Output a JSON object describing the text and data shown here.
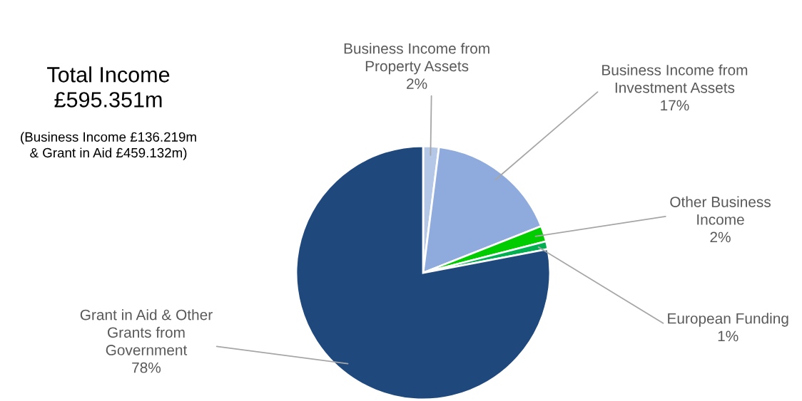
{
  "chart_data": {
    "type": "pie",
    "title": "Total Income\n£595.351m",
    "subtitle": "(Business Income £136.219m\n& Grant in Aid £459.132m)",
    "categories": [
      "Business Income from\nProperty Assets",
      "Business Income from\nInvestment Assets",
      "Other Business\nIncome",
      "European Funding",
      "Grant in Aid & Other\nGrants from\nGovernment"
    ],
    "values": [
      2,
      17,
      2,
      1,
      78
    ],
    "colors": [
      "#b4c7e7",
      "#8faadc",
      "#00cc00",
      "#00b050",
      "#1f497d"
    ],
    "value_labels": [
      "2%",
      "17%",
      "2%",
      "1%",
      "78%"
    ],
    "legend": false
  }
}
